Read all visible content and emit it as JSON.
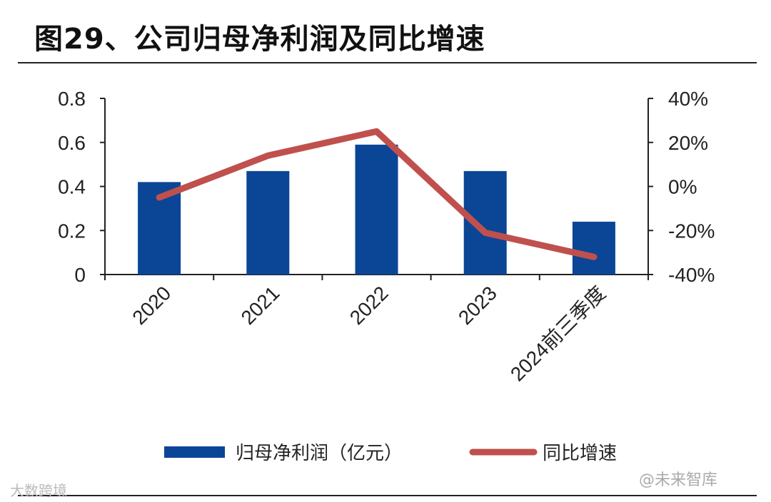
{
  "title": "图29、公司归母净利润及同比增速",
  "watermarks": {
    "left": "大数跨境",
    "right": "@未来智库"
  },
  "chart_data": {
    "type": "bar+line",
    "title": "图29、公司归母净利润及同比增速",
    "categories": [
      "2020",
      "2021",
      "2022",
      "2023",
      "2024前三季度"
    ],
    "series": [
      {
        "name": "归母净利润（亿元）",
        "type": "bar",
        "axis": "left",
        "color": "#0B4596",
        "values": [
          0.42,
          0.47,
          0.59,
          0.47,
          0.24
        ]
      },
      {
        "name": "同比增速",
        "type": "line",
        "axis": "right",
        "color": "#C0504D",
        "values": [
          -5,
          14,
          25,
          -21,
          -32
        ]
      }
    ],
    "left_axis": {
      "ylim": [
        0,
        0.8
      ],
      "ticks": [
        "0",
        "0.2",
        "0.4",
        "0.6",
        "0.8"
      ]
    },
    "right_axis": {
      "ylim": [
        -40,
        40
      ],
      "unit": "%",
      "ticks": [
        "-40%",
        "-20%",
        "0%",
        "20%",
        "40%"
      ]
    },
    "legend": {
      "placement": "bottom",
      "labels": [
        "归母净利润（亿元）",
        "同比增速"
      ]
    },
    "grid": false
  }
}
